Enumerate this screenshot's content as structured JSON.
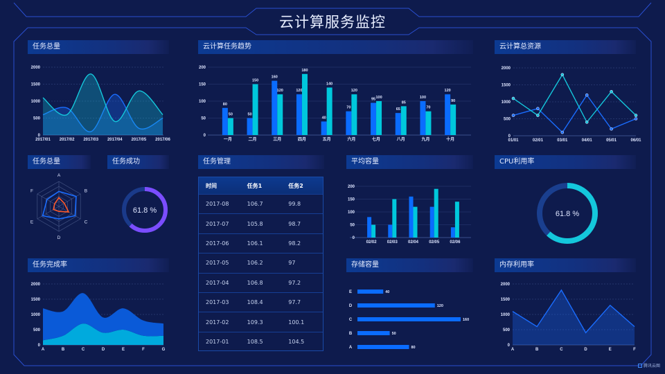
{
  "header": {
    "title": "云计算服务监控"
  },
  "watermark": "腾讯云图",
  "colors": {
    "background": "#0e1b4d",
    "blue": "#0a6cff",
    "cyan": "#14c8dc",
    "purple": "#7b4dff",
    "orange": "#ff5a2a",
    "frame": "#2a4fd0"
  },
  "task_table": {
    "title": "任务管理",
    "columns": [
      "时间",
      "任务1",
      "任务2"
    ],
    "rows": [
      [
        "2017-08",
        "106.7",
        "99.8"
      ],
      [
        "2017-07",
        "105.8",
        "98.7"
      ],
      [
        "2017-06",
        "106.1",
        "98.2"
      ],
      [
        "2017-05",
        "106.2",
        "97"
      ],
      [
        "2017-04",
        "106.8",
        "97.2"
      ],
      [
        "2017-03",
        "108.4",
        "97.7"
      ],
      [
        "2017-02",
        "109.3",
        "100.1"
      ],
      [
        "2017-01",
        "108.5",
        "104.5"
      ]
    ]
  },
  "chart_data": [
    {
      "title": "任务总量",
      "type": "area",
      "smooth": true,
      "categories": [
        "2017/01",
        "2017/02",
        "2017/03",
        "2017/04",
        "2017/05",
        "2017/06"
      ],
      "ylim": [
        0,
        2000
      ],
      "yticks": [
        "0",
        "500",
        "1000",
        "1500",
        "2000"
      ],
      "grid": true,
      "series": [
        {
          "values": [
            600,
            800,
            100,
            1200,
            200,
            500
          ],
          "color": "#1a6dff"
        },
        {
          "values": [
            1100,
            600,
            1800,
            400,
            1300,
            600
          ],
          "color": "#14c8dc"
        }
      ]
    },
    {
      "title": "云计算任务趋势",
      "type": "bar",
      "categories": [
        "一月",
        "二月",
        "三月",
        "四月",
        "五月",
        "六月",
        "七月",
        "八月",
        "九月",
        "十月"
      ],
      "ylim": [
        0,
        200
      ],
      "yticks": [
        "0",
        "50",
        "100",
        "150",
        "200"
      ],
      "grid": true,
      "data_labels": true,
      "series": [
        {
          "values": [
            80,
            50,
            160,
            120,
            40,
            70,
            95,
            65,
            100,
            120
          ],
          "color": "#0a6cff"
        },
        {
          "values": [
            50,
            150,
            120,
            180,
            140,
            120,
            100,
            85,
            70,
            90
          ],
          "color": "#00c8dc"
        }
      ]
    },
    {
      "title": "云计算总资源",
      "type": "line",
      "markers": true,
      "categories": [
        "01/01",
        "02/01",
        "03/01",
        "04/01",
        "05/01",
        "06/01"
      ],
      "ylim": [
        0,
        2000
      ],
      "yticks": [
        "0",
        "500",
        "1000",
        "1500",
        "2000"
      ],
      "grid": true,
      "series": [
        {
          "values": [
            600,
            800,
            100,
            1200,
            200,
            500
          ],
          "color": "#1a6dff"
        },
        {
          "values": [
            1100,
            600,
            1800,
            400,
            1300,
            600
          ],
          "color": "#14c8dc"
        }
      ]
    },
    {
      "title": "任务总量",
      "type": "radar",
      "indicators": [
        "A",
        "B",
        "C",
        "D",
        "E",
        "F"
      ],
      "max": 100,
      "series": [
        {
          "values": [
            60,
            80,
            75,
            50,
            75,
            55
          ],
          "color": "#1a6dff"
        },
        {
          "values": [
            35,
            25,
            45,
            20,
            25,
            20
          ],
          "color": "#ff5a2a"
        }
      ]
    },
    {
      "title": "任务成功",
      "type": "pie",
      "variant": "ring",
      "value": 61.8,
      "label": "61.8 %",
      "color": "#7b4dff",
      "track_color": "#1a3a8a"
    },
    {
      "title": "平均容量",
      "type": "bar",
      "categories": [
        "02/02",
        "02/03",
        "02/04",
        "02/05",
        "02/06"
      ],
      "ylim": [
        0,
        200
      ],
      "yticks": [
        "0",
        "50",
        "100",
        "150",
        "200"
      ],
      "grid": true,
      "series": [
        {
          "values": [
            80,
            50,
            160,
            120,
            40
          ],
          "color": "#0a6cff"
        },
        {
          "values": [
            50,
            150,
            120,
            190,
            140
          ],
          "color": "#00c8dc"
        }
      ]
    },
    {
      "title": "CPU利用率",
      "type": "pie",
      "variant": "ring",
      "value": 61.8,
      "label": "61.8 %",
      "color": "#14c8dc",
      "track_color": "#1a3f8f"
    },
    {
      "title": "任务完成率",
      "type": "area",
      "stacked": true,
      "smooth": true,
      "categories": [
        "A",
        "B",
        "C",
        "D",
        "E",
        "F",
        "G"
      ],
      "ylim": [
        0,
        2000
      ],
      "yticks": [
        "0",
        "500",
        "1000",
        "1500",
        "2000"
      ],
      "grid": true,
      "series": [
        {
          "values": [
            150,
            300,
            700,
            400,
            500,
            300,
            300
          ],
          "color": "#00aadd"
        },
        {
          "values": [
            1050,
            800,
            1000,
            500,
            700,
            500,
            400
          ],
          "color": "#0a5ad8"
        }
      ]
    },
    {
      "title": "存储容量",
      "type": "bar",
      "orientation": "horizontal",
      "categories": [
        "A",
        "B",
        "C",
        "D",
        "E"
      ],
      "values": [
        80,
        50,
        160,
        120,
        40
      ],
      "data_labels": [
        "80",
        "50",
        "160",
        "120",
        "40"
      ],
      "color": "#0a6cff",
      "xlim": [
        0,
        160
      ]
    },
    {
      "title": "内存利用率",
      "type": "area",
      "categories": [
        "A",
        "B",
        "C",
        "D",
        "E",
        "F"
      ],
      "ylim": [
        0,
        2000
      ],
      "yticks": [
        "0",
        "500",
        "1000",
        "1500",
        "2000"
      ],
      "grid": true,
      "series": [
        {
          "values": [
            1100,
            600,
            1800,
            400,
            1300,
            600
          ],
          "color": "#1a6dff"
        }
      ]
    }
  ]
}
